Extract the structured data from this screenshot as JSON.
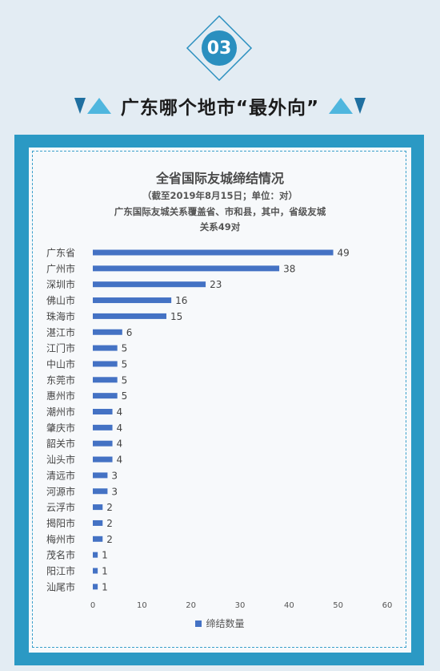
{
  "badge": {
    "number": "03"
  },
  "heading": {
    "title": "广东哪个地市“最外向”"
  },
  "colors": {
    "frame": "#2b99c4",
    "bar": "#4472c4",
    "badge": "#2a8fbf",
    "deco": "#2a8fbf"
  },
  "chart_data": {
    "type": "bar",
    "orientation": "horizontal",
    "title": "全省国际友城缔结情况",
    "subtitle_lines": [
      "（截至2019年8月15日；单位：对）",
      "广东国际友城关系覆盖省、市和县，其中，省级友城",
      "关系49对"
    ],
    "categories": [
      "广东省",
      "广州市",
      "深圳市",
      "佛山市",
      "珠海市",
      "湛江市",
      "江门市",
      "中山市",
      "东莞市",
      "惠州市",
      "潮州市",
      "肇庆市",
      "韶关市",
      "汕头市",
      "清远市",
      "河源市",
      "云浮市",
      "揭阳市",
      "梅州市",
      "茂名市",
      "阳江市",
      "汕尾市"
    ],
    "series": [
      {
        "name": "缔结数量",
        "values": [
          49,
          38,
          23,
          16,
          15,
          6,
          5,
          5,
          5,
          5,
          4,
          4,
          4,
          4,
          3,
          3,
          2,
          2,
          2,
          1,
          1,
          1
        ]
      }
    ],
    "xlim": [
      0,
      60
    ],
    "xticks": [
      "0",
      "10",
      "20",
      "30",
      "40",
      "50",
      "60"
    ],
    "legend_position": "bottom",
    "grid": false
  }
}
